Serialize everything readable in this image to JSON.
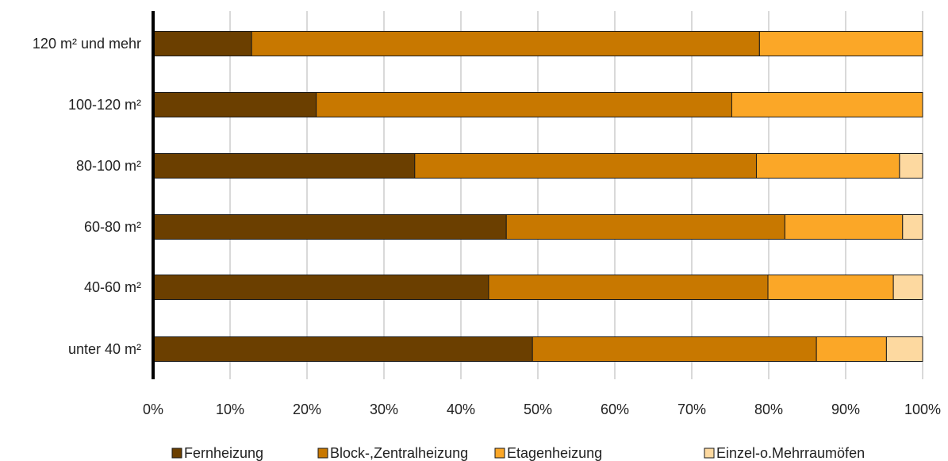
{
  "chart_data": {
    "type": "bar",
    "orientation": "horizontal",
    "stacked": true,
    "percent": true,
    "categories": [
      "120 m² und mehr",
      "100-120 m²",
      "80-100 m²",
      "60-80 m²",
      "40-60 m²",
      "unter 40 m²"
    ],
    "series": [
      {
        "name": "Fernheizung",
        "color": "#6b3f00",
        "values": [
          12.8,
          21.2,
          34.0,
          45.9,
          43.6,
          49.3
        ]
      },
      {
        "name": "Block-,Zentralheizung",
        "color": "#c87800",
        "values": [
          66.0,
          54.0,
          44.4,
          36.2,
          36.3,
          36.9
        ]
      },
      {
        "name": "Etagenheizung",
        "color": "#fba727",
        "values": [
          21.2,
          24.8,
          18.6,
          15.3,
          16.3,
          9.1
        ]
      },
      {
        "name": "Einzel-o.Mehrraumöfen",
        "color": "#fdd9a0",
        "values": [
          0,
          0,
          3.0,
          2.6,
          3.8,
          4.7
        ]
      }
    ],
    "x_ticks": [
      "0%",
      "10%",
      "20%",
      "30%",
      "40%",
      "50%",
      "60%",
      "70%",
      "80%",
      "90%",
      "100%"
    ],
    "xlim": [
      0,
      100
    ],
    "grid": "vertical",
    "legend_position": "bottom"
  }
}
